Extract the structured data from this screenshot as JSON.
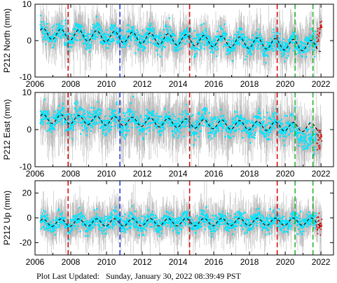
{
  "footer": {
    "label": "Plot Last Updated:",
    "date": "Sunday, January 30, 2022 08:39:49 PST"
  },
  "chart_data": [
    {
      "type": "scatter",
      "ylabel": "P212 North (mm)",
      "xlim": [
        2006,
        2022.7
      ],
      "ylim": [
        -10,
        10
      ],
      "yticks": [
        -10,
        0,
        10
      ],
      "xticks": [
        2006,
        2008,
        2010,
        2012,
        2014,
        2016,
        2018,
        2020,
        2022
      ],
      "trend": {
        "start": 2.0,
        "end": -1.5,
        "seasonal_amplitude": 1.5
      },
      "recent_offset": {
        "after": 2021.7,
        "to": 5.0
      },
      "scatter_sd": 1.4,
      "error_sd": 3.0
    },
    {
      "type": "scatter",
      "ylabel": "P212 East (mm)",
      "xlim": [
        2006,
        2022.7
      ],
      "ylim": [
        -10,
        10
      ],
      "yticks": [
        -10,
        0,
        10
      ],
      "xticks": [
        2006,
        2008,
        2010,
        2012,
        2014,
        2016,
        2018,
        2020,
        2022
      ],
      "trend": {
        "start": 3.0,
        "end": 0.5,
        "seasonal_amplitude": 1.2
      },
      "recent_offset": {
        "after": 2020.5,
        "to": -2.5
      },
      "scatter_sd": 1.6,
      "error_sd": 3.5
    },
    {
      "type": "scatter",
      "ylabel": "P212 Up (mm)",
      "xlim": [
        2006,
        2022.7
      ],
      "ylim": [
        -30,
        30
      ],
      "yticks": [
        -20,
        0,
        20
      ],
      "xticks": [
        2006,
        2008,
        2010,
        2012,
        2014,
        2016,
        2018,
        2020,
        2022
      ],
      "trend": {
        "start": -4.0,
        "end": -3.0,
        "seasonal_amplitude": 3.0
      },
      "recent_offset": {
        "after": 2021.9,
        "to": -8.0
      },
      "scatter_sd": 3.5,
      "error_sd": 8.0
    }
  ],
  "event_lines": [
    {
      "x": 2007.85,
      "color": "#e00000"
    },
    {
      "x": 2010.75,
      "color": "#2030e0"
    },
    {
      "x": 2014.65,
      "color": "#e00000"
    },
    {
      "x": 2019.55,
      "color": "#e00000"
    },
    {
      "x": 2020.55,
      "color": "#20b020"
    },
    {
      "x": 2021.55,
      "color": "#20b020"
    }
  ],
  "colors": {
    "errorbars": "#b8b8b8",
    "points": "#00e5ff",
    "model": "#000000",
    "recent_points": "#e00000",
    "frame": "#000000"
  }
}
